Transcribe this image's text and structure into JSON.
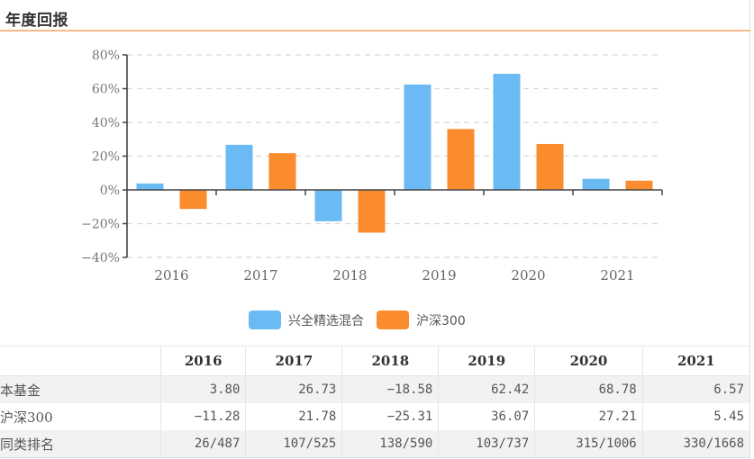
{
  "section": {
    "title": "年度回报"
  },
  "colors": {
    "fund": "#6cbaf3",
    "index": "#fb8c2e",
    "grid": "#d8d8d8",
    "axis": "#444444",
    "accent_rule": "#fbb88a"
  },
  "chart_data": {
    "type": "bar",
    "title": "年度回报",
    "xlabel": "",
    "ylabel": "",
    "categories": [
      "2016",
      "2017",
      "2018",
      "2019",
      "2020",
      "2021"
    ],
    "series": [
      {
        "name": "兴全精选混合",
        "values": [
          3.8,
          26.73,
          -18.58,
          62.42,
          68.78,
          6.57
        ]
      },
      {
        "name": "沪深300",
        "values": [
          -11.28,
          21.78,
          -25.31,
          36.07,
          27.21,
          5.45
        ]
      }
    ],
    "ylim": [
      -40,
      80
    ],
    "yticks": [
      80,
      60,
      40,
      20,
      0,
      -20,
      -40
    ],
    "ytick_labels": [
      "80%",
      "60%",
      "40%",
      "20%",
      "0%",
      "−20%",
      "−40%"
    ],
    "grid": true,
    "legend_position": "bottom-center"
  },
  "legend": [
    {
      "label": "兴全精选混合"
    },
    {
      "label": "沪深300"
    }
  ],
  "table": {
    "columns": [
      "",
      "2016",
      "2017",
      "2018",
      "2019",
      "2020",
      "2021"
    ],
    "rows": [
      {
        "label": "本基金",
        "cells": [
          "3.80",
          "26.73",
          "−18.58",
          "62.42",
          "68.78",
          "6.57"
        ]
      },
      {
        "label": "沪深300",
        "cells": [
          "−11.28",
          "21.78",
          "−25.31",
          "36.07",
          "27.21",
          "5.45"
        ]
      },
      {
        "label": "同类排名",
        "cells": [
          "26/487",
          "107/525",
          "138/590",
          "103/737",
          "315/1006",
          "330/1668"
        ]
      }
    ]
  }
}
